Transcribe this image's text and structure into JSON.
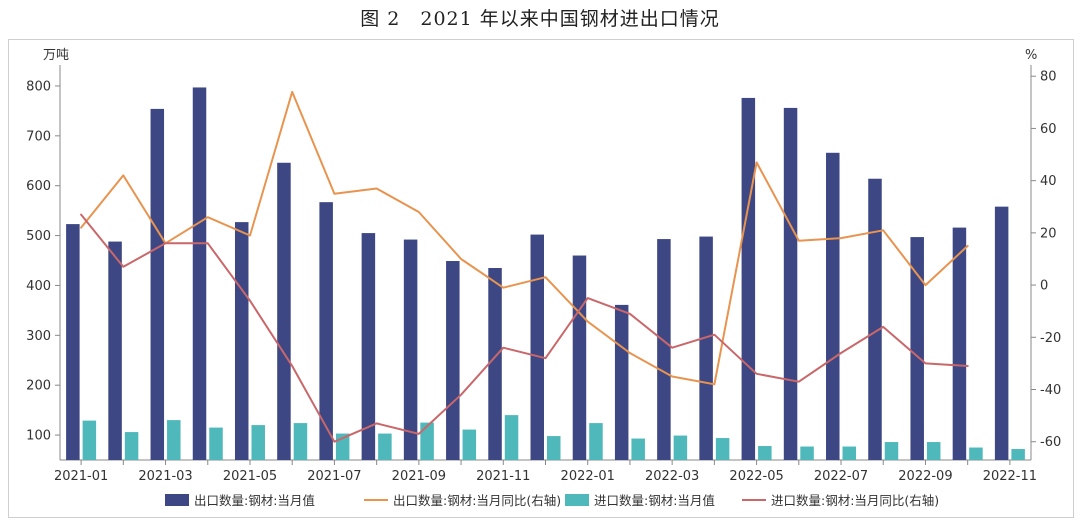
{
  "title": "图 2　2021 年以来中国钢材进出口情况",
  "chart_data": {
    "type": "bar",
    "x": [
      "2021-01",
      "2021-02",
      "2021-03",
      "2021-04",
      "2021-05",
      "2021-06",
      "2021-07",
      "2021-08",
      "2021-09",
      "2021-10",
      "2021-11",
      "2021-12",
      "2022-01",
      "2022-02",
      "2022-03",
      "2022-04",
      "2022-05",
      "2022-06",
      "2022-07",
      "2022-08",
      "2022-09",
      "2022-10",
      "2022-11"
    ],
    "x_tick_labels": [
      "2021-01",
      "2021-03",
      "2021-05",
      "2021-07",
      "2021-09",
      "2021-11",
      "2022-01",
      "2022-03",
      "2022-05",
      "2022-07",
      "2022-09",
      "2022-11"
    ],
    "left_axis": {
      "unit": "万吨",
      "ylim": [
        50,
        830
      ],
      "ticks": [
        100,
        200,
        300,
        400,
        500,
        600,
        700,
        800
      ]
    },
    "right_axis": {
      "unit": "%",
      "ylim": [
        -67,
        82
      ],
      "ticks": [
        -60,
        -40,
        -20,
        0,
        20,
        40,
        60,
        80
      ]
    },
    "grid": false,
    "legend_position": "bottom",
    "colors": {
      "export_bar": "#3d4784",
      "import_bar": "#4fb8bb",
      "export_yoy": "#e8944f",
      "import_yoy": "#c9676a"
    },
    "series": [
      {
        "name": "出口数量:钢材:当月值",
        "type": "bar",
        "axis": "left",
        "color": "#3d4784",
        "values": [
          523,
          488,
          754,
          797,
          527,
          646,
          567,
          505,
          492,
          449,
          435,
          502,
          460,
          361,
          493,
          498,
          776,
          756,
          666,
          614,
          497,
          516,
          558
        ]
      },
      {
        "name": "进口数量:钢材:当月值",
        "type": "bar",
        "axis": "left",
        "color": "#4fb8bb",
        "values": [
          129,
          106,
          130,
          115,
          120,
          124,
          103,
          103,
          125,
          111,
          140,
          98,
          124,
          93,
          99,
          94,
          78,
          77,
          77,
          86,
          86,
          75,
          72
        ]
      },
      {
        "name": "出口数量:钢材:当月同比(右轴)",
        "type": "line",
        "axis": "right",
        "color": "#e8944f",
        "values": [
          22,
          42,
          16,
          26,
          19,
          74,
          35,
          37,
          28,
          10,
          -1,
          3,
          -14,
          -26,
          -35,
          -38,
          47,
          17,
          18,
          21,
          0,
          15,
          null
        ]
      },
      {
        "name": "进口数量:钢材:当月同比(右轴)",
        "type": "line",
        "axis": "right",
        "color": "#c9676a",
        "values": [
          27,
          7,
          16,
          16,
          -6,
          -31,
          -60,
          -53,
          -57,
          -42,
          -24,
          -28,
          -5,
          -11,
          -24,
          -19,
          -34,
          -37,
          -26,
          -16,
          -30,
          -31,
          null
        ]
      }
    ]
  }
}
